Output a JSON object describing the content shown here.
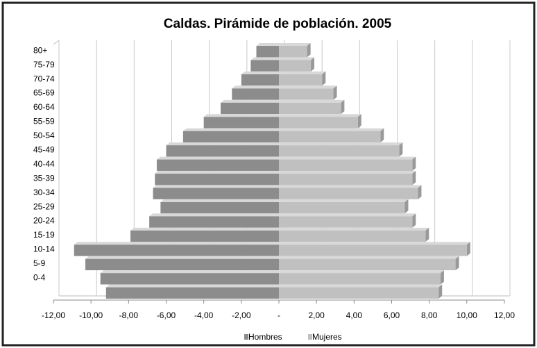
{
  "chart_data": {
    "type": "bar",
    "orientation": "horizontal",
    "title": "Caldas. Pirámide de población. 2005",
    "categories": [
      "80+",
      "75-79",
      "70-74",
      "65-69",
      "60-64",
      "55-59",
      "50-54",
      "45-49",
      "40-44",
      "35-39",
      "30-34",
      "25-29",
      "20-24",
      "15-19",
      "10-14",
      "5-9",
      "0-4",
      null
    ],
    "series": [
      {
        "name": "Hombres",
        "color": "#8c8c8c",
        "values": [
          -1.2,
          -1.5,
          -2.0,
          -2.5,
          -3.1,
          -4.0,
          -5.1,
          -6.0,
          -6.5,
          -6.6,
          -6.7,
          -6.3,
          -6.9,
          -7.9,
          -10.9,
          -10.3,
          -9.5,
          -9.2
        ]
      },
      {
        "name": "Mujeres",
        "color": "#c0c0c0",
        "values": [
          1.5,
          1.7,
          2.3,
          2.9,
          3.3,
          4.2,
          5.4,
          6.4,
          7.1,
          7.1,
          7.4,
          6.7,
          7.1,
          7.8,
          10.0,
          9.4,
          8.6,
          8.5
        ]
      }
    ],
    "xlim": [
      -12,
      12
    ],
    "xticks": [
      {
        "value": -12,
        "label": "-12,00"
      },
      {
        "value": -10,
        "label": "-10,00"
      },
      {
        "value": -8,
        "label": "-8,00"
      },
      {
        "value": -6,
        "label": "-6,00"
      },
      {
        "value": -4,
        "label": "-4,00"
      },
      {
        "value": -2,
        "label": "-2,00"
      },
      {
        "value": 0,
        "label": "-"
      },
      {
        "value": 2,
        "label": "2,00"
      },
      {
        "value": 4,
        "label": "4,00"
      },
      {
        "value": 6,
        "label": "6,00"
      },
      {
        "value": 8,
        "label": "8,00"
      },
      {
        "value": 10,
        "label": "10,00"
      },
      {
        "value": 12,
        "label": "12,00"
      }
    ],
    "grid": true,
    "legend": "bottom"
  }
}
